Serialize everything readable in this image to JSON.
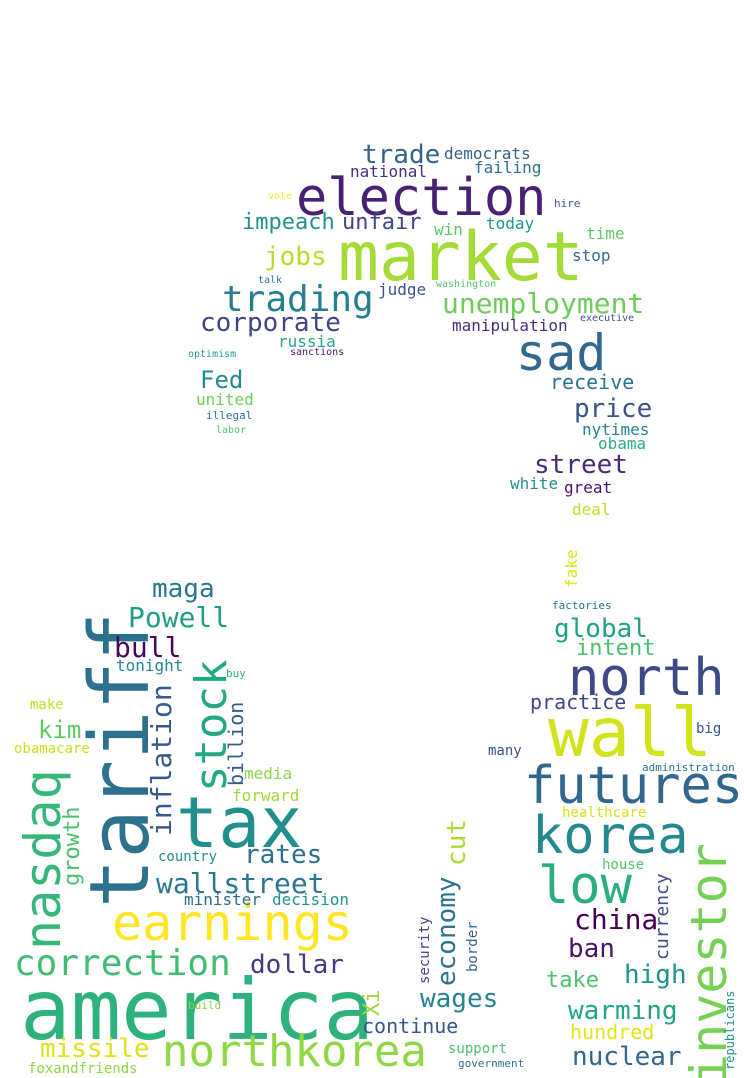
{
  "title": "",
  "words": [
    {
      "text": "america",
      "color": "#2db27d"
    },
    {
      "text": "tariff",
      "color": "#2c728e"
    },
    {
      "text": "tax",
      "color": "#21908d"
    },
    {
      "text": "market",
      "color": "#a5db36"
    },
    {
      "text": "wall",
      "color": "#d2e21b"
    },
    {
      "text": "election",
      "color": "#482173"
    },
    {
      "text": "northkorea",
      "color": "#8fd744"
    },
    {
      "text": "earnings",
      "color": "#fde725"
    },
    {
      "text": "nasdaq",
      "color": "#35b779"
    },
    {
      "text": "investor",
      "color": "#75d054"
    },
    {
      "text": "futures",
      "color": "#31668e"
    },
    {
      "text": "korea",
      "color": "#23898e"
    },
    {
      "text": "north",
      "color": "#3e4989"
    },
    {
      "text": "low",
      "color": "#29af7f"
    },
    {
      "text": "stock",
      "color": "#22a884"
    },
    {
      "text": "sad",
      "color": "#31688e"
    },
    {
      "text": "correction",
      "color": "#40bd72"
    },
    {
      "text": "trading",
      "color": "#277f8e"
    },
    {
      "text": "unemployment",
      "color": "#6ccd5a"
    },
    {
      "text": "wallstreet",
      "color": "#2a788e"
    },
    {
      "text": "inflation",
      "color": "#38598c"
    },
    {
      "text": "corporate",
      "color": "#414487"
    },
    {
      "text": "dollar",
      "color": "#443983"
    },
    {
      "text": "missile",
      "color": "#dde318"
    },
    {
      "text": "wages",
      "color": "#26828e"
    },
    {
      "text": "Powell",
      "color": "#1f9e89"
    },
    {
      "text": "rates",
      "color": "#2e6e8e"
    },
    {
      "text": "global",
      "color": "#1fa088"
    },
    {
      "text": "china",
      "color": "#440154"
    },
    {
      "text": "maga",
      "color": "#2a768e"
    },
    {
      "text": "street",
      "color": "#472c7a"
    },
    {
      "text": "bull",
      "color": "#46085c"
    },
    {
      "text": "jobs",
      "color": "#b5de2b"
    },
    {
      "text": "price",
      "color": "#3b528b"
    },
    {
      "text": "trade",
      "color": "#33628d"
    },
    {
      "text": "economy",
      "color": "#2c738e"
    },
    {
      "text": "cut",
      "color": "#a8db34"
    },
    {
      "text": "high",
      "color": "#20928c"
    },
    {
      "text": "warming",
      "color": "#20a386"
    },
    {
      "text": "nuclear",
      "color": "#31678e"
    },
    {
      "text": "ban",
      "color": "#481467"
    },
    {
      "text": "take",
      "color": "#4ac16d"
    },
    {
      "text": "Fed",
      "color": "#238a8d"
    },
    {
      "text": "kim",
      "color": "#5ec962"
    },
    {
      "text": "growth",
      "color": "#48c16e"
    },
    {
      "text": "billion",
      "color": "#365c8d"
    },
    {
      "text": "impeach",
      "color": "#21918c"
    },
    {
      "text": "unfair",
      "color": "#3f4788"
    },
    {
      "text": "intent",
      "color": "#46c06f"
    },
    {
      "text": "practice",
      "color": "#414487"
    },
    {
      "text": "receive",
      "color": "#2d718e"
    },
    {
      "text": "continue",
      "color": "#39568c"
    },
    {
      "text": "hundred",
      "color": "#e2e418"
    },
    {
      "text": "currency",
      "color": "#3e4a89"
    },
    {
      "text": "Xi",
      "color": "#9bd93c"
    },
    {
      "text": "manipulation",
      "color": "#472d7b"
    },
    {
      "text": "democrats",
      "color": "#355e8d"
    },
    {
      "text": "failing",
      "color": "#2d708e"
    },
    {
      "text": "national",
      "color": "#462f7c"
    },
    {
      "text": "today",
      "color": "#1f968b"
    },
    {
      "text": "win",
      "color": "#5cc863"
    },
    {
      "text": "stop",
      "color": "#2f6b8e"
    },
    {
      "text": "time",
      "color": "#5ec962"
    },
    {
      "text": "judge",
      "color": "#3b528b"
    },
    {
      "text": "russia",
      "color": "#22a785"
    },
    {
      "text": "united",
      "color": "#6ece58"
    },
    {
      "text": "nytimes",
      "color": "#25848e"
    },
    {
      "text": "obama",
      "color": "#29af7f"
    },
    {
      "text": "white",
      "color": "#218f8d"
    },
    {
      "text": "great",
      "color": "#471365"
    },
    {
      "text": "deal",
      "color": "#bddf26"
    },
    {
      "text": "fake",
      "color": "#dae319"
    },
    {
      "text": "factories",
      "color": "#2c718e"
    },
    {
      "text": "tonight",
      "color": "#24868e"
    },
    {
      "text": "make",
      "color": "#c2df23"
    },
    {
      "text": "obamacare",
      "color": "#c8e020"
    },
    {
      "text": "media",
      "color": "#8bd646"
    },
    {
      "text": "forward",
      "color": "#9dd93b"
    },
    {
      "text": "country",
      "color": "#238a8d"
    },
    {
      "text": "minister",
      "color": "#31678e"
    },
    {
      "text": "decision",
      "color": "#20928c"
    },
    {
      "text": "security",
      "color": "#433e85"
    },
    {
      "text": "border",
      "color": "#34618d"
    },
    {
      "text": "support",
      "color": "#4ac16d"
    },
    {
      "text": "government",
      "color": "#2d708e"
    },
    {
      "text": "foxandfriends",
      "color": "#8bd646"
    },
    {
      "text": "build",
      "color": "#86d549"
    },
    {
      "text": "buy",
      "color": "#2ab07f"
    },
    {
      "text": "big",
      "color": "#3a548c"
    },
    {
      "text": "many",
      "color": "#3b528b"
    },
    {
      "text": "administration",
      "color": "#2a778e"
    },
    {
      "text": "healthcare",
      "color": "#d8e219"
    },
    {
      "text": "house",
      "color": "#4ec36b"
    },
    {
      "text": "republicans",
      "color": "#21918c"
    },
    {
      "text": "vote",
      "color": "#fde725"
    },
    {
      "text": "hire",
      "color": "#3b528b"
    },
    {
      "text": "talk",
      "color": "#2c728e"
    },
    {
      "text": "washington",
      "color": "#54c568"
    },
    {
      "text": "executive",
      "color": "#3d4e8a"
    },
    {
      "text": "optimism",
      "color": "#1f9a8a"
    },
    {
      "text": "sanctions",
      "color": "#481668"
    },
    {
      "text": "illegal",
      "color": "#2c728e"
    },
    {
      "text": "labor",
      "color": "#52c569"
    }
  ]
}
